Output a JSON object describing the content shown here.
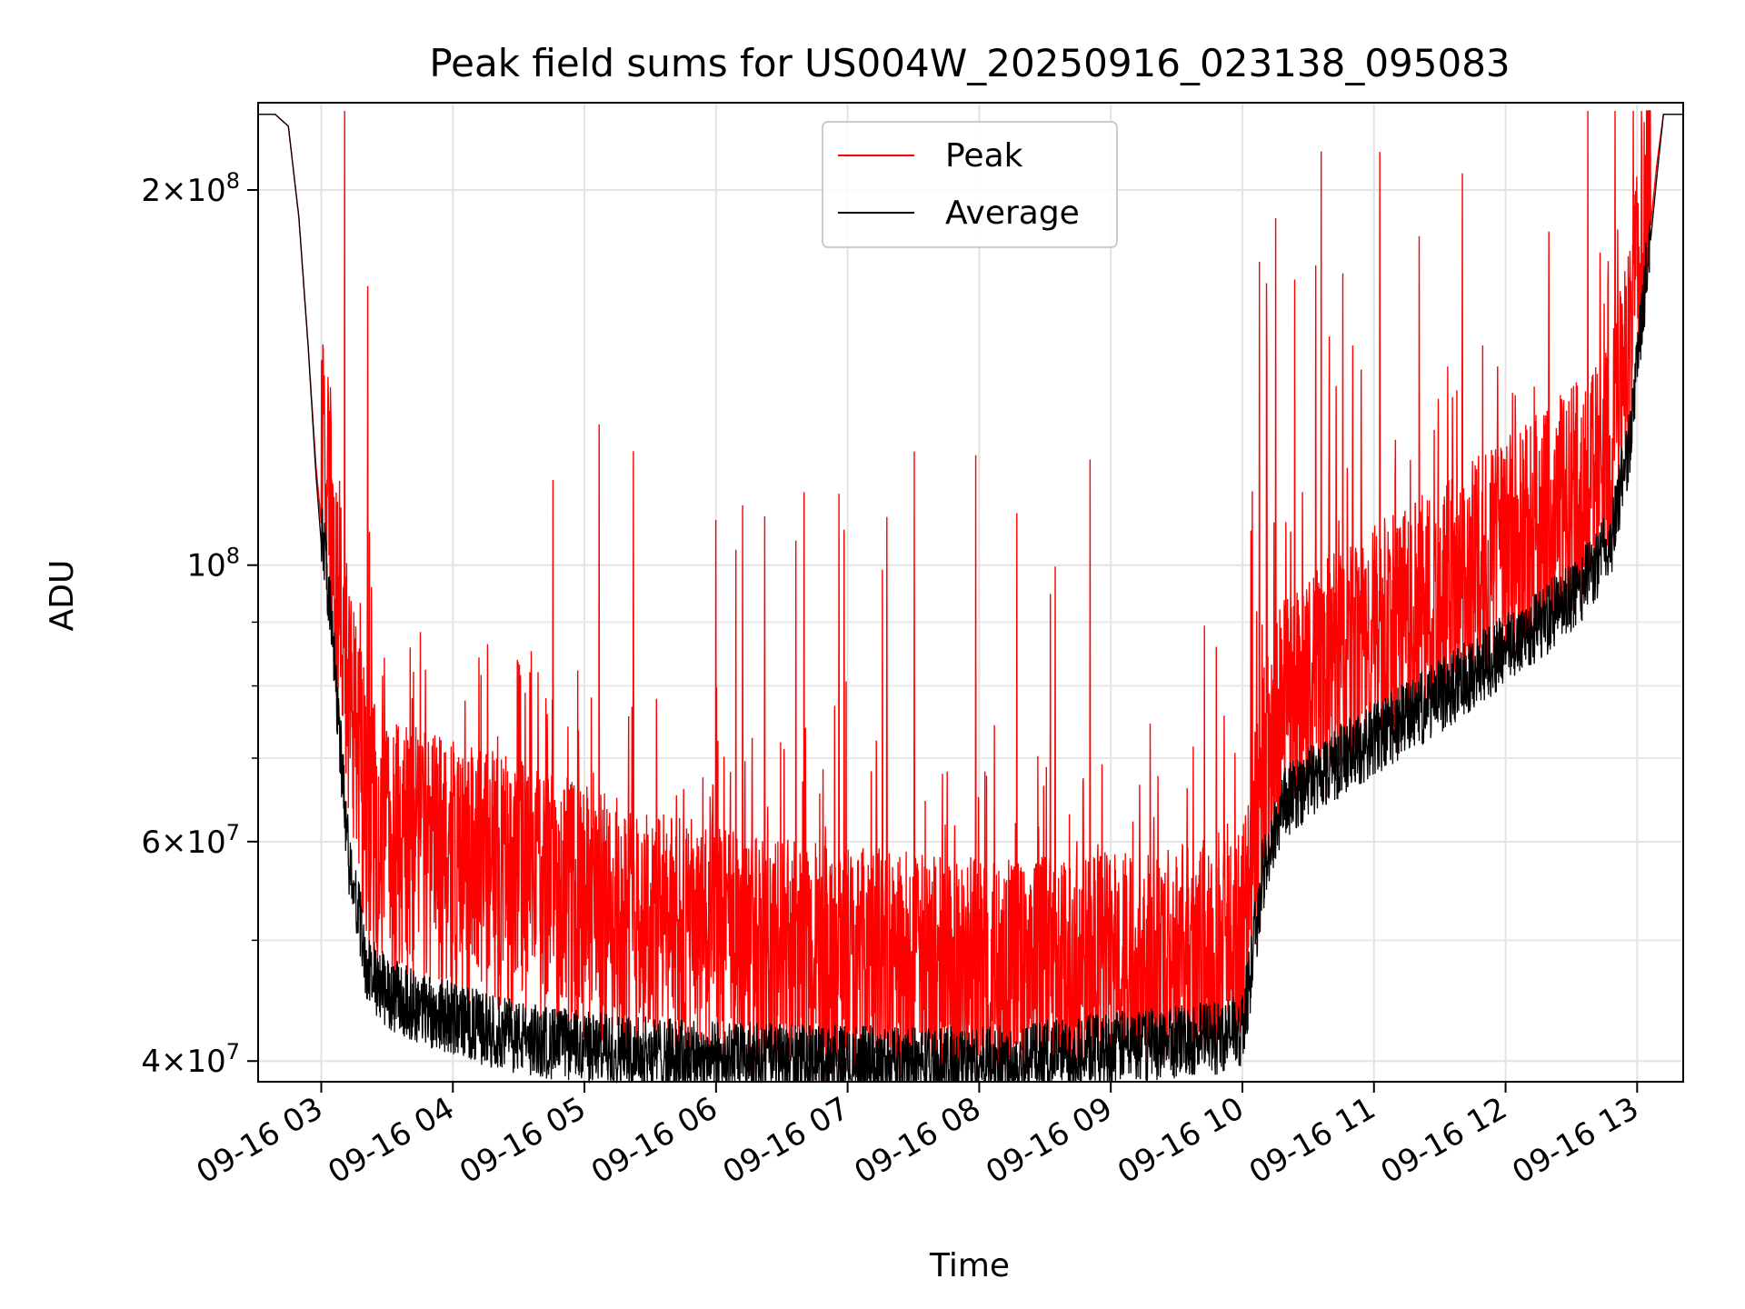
{
  "chart_data": {
    "type": "line",
    "title": "Peak field sums for US004W_20250916_023138_095083",
    "xlabel": "Time",
    "ylabel": "ADU",
    "yscale": "log",
    "ylim": [
      38500000,
      235000000
    ],
    "xlim_hours": [
      2.52,
      13.35
    ],
    "grid": true,
    "legend_location": "upper center",
    "x_tick_labels": [
      "09-16 03",
      "09-16 04",
      "09-16 05",
      "09-16 06",
      "09-16 07",
      "09-16 08",
      "09-16 09",
      "09-16 10",
      "09-16 11",
      "09-16 12",
      "09-16 13"
    ],
    "x_tick_hours": [
      3,
      4,
      5,
      6,
      7,
      8,
      9,
      10,
      11,
      12,
      13
    ],
    "y_tick_labels": [
      {
        "value": 40000000,
        "mant": "4",
        "exp": "7"
      },
      {
        "value": 60000000,
        "mant": "6",
        "exp": "7"
      },
      {
        "value": 100000000,
        "mant": "",
        "exp": "8"
      },
      {
        "value": 200000000,
        "mant": "2",
        "exp": "8"
      }
    ],
    "y_minor_ticks": [
      50000000,
      70000000,
      80000000,
      90000000
    ],
    "series": [
      {
        "name": "Peak",
        "color": "#ff0000",
        "x_hours": [
          2.52,
          2.65,
          2.75,
          2.83,
          2.9,
          2.96,
          3.0,
          3.05,
          3.1,
          3.2,
          3.35,
          3.5,
          3.7,
          4.0,
          4.3,
          4.6,
          5.0,
          5.5,
          6.0,
          6.5,
          7.0,
          7.5,
          8.0,
          8.3,
          8.6,
          9.0,
          9.5,
          9.8,
          9.99,
          10.05,
          10.15,
          10.3,
          10.6,
          11.0,
          11.5,
          12.0,
          12.5,
          12.8,
          12.95,
          13.05,
          13.15,
          13.2,
          13.35
        ],
        "baseline": [
          230000000,
          230000000,
          225000000,
          190000000,
          150000000,
          120000000,
          108000000,
          100000000,
          90000000,
          72000000,
          56000000,
          53000000,
          52000000,
          51000000,
          50000000,
          49000000,
          47000000,
          45000000,
          43500000,
          42500000,
          42000000,
          41500000,
          41000000,
          41000000,
          41300000,
          41700000,
          42000000,
          42300000,
          43000000,
          48000000,
          58000000,
          66000000,
          71000000,
          76000000,
          82000000,
          89000000,
          98000000,
          108000000,
          130000000,
          165000000,
          210000000,
          230000000,
          230000000
        ],
        "spike_amplitude": 1.42
      },
      {
        "name": "Average",
        "color": "#000000",
        "x_hours": [
          2.52,
          2.65,
          2.75,
          2.83,
          2.9,
          2.96,
          3.0,
          3.05,
          3.1,
          3.2,
          3.35,
          3.5,
          3.7,
          4.0,
          4.3,
          4.6,
          5.0,
          5.5,
          6.0,
          6.5,
          7.0,
          7.5,
          8.0,
          8.3,
          8.6,
          9.0,
          9.5,
          9.8,
          9.99,
          10.05,
          10.15,
          10.3,
          10.6,
          11.0,
          11.5,
          12.0,
          12.5,
          12.8,
          12.95,
          13.05,
          13.15,
          13.2,
          13.35
        ],
        "baseline": [
          230000000,
          230000000,
          225000000,
          190000000,
          150000000,
          118000000,
          104000000,
          95000000,
          82000000,
          58000000,
          46500000,
          44500000,
          43500000,
          42500000,
          41500000,
          40800000,
          40300000,
          39800000,
          39500000,
          39300000,
          39200000,
          39100000,
          39100000,
          39300000,
          39700000,
          40200000,
          40700000,
          41000000,
          41500000,
          45000000,
          55000000,
          63000000,
          67000000,
          71000000,
          77000000,
          84000000,
          92000000,
          102000000,
          125000000,
          160000000,
          205000000,
          230000000,
          230000000
        ],
        "noise_amplitude": 1.07
      }
    ]
  }
}
